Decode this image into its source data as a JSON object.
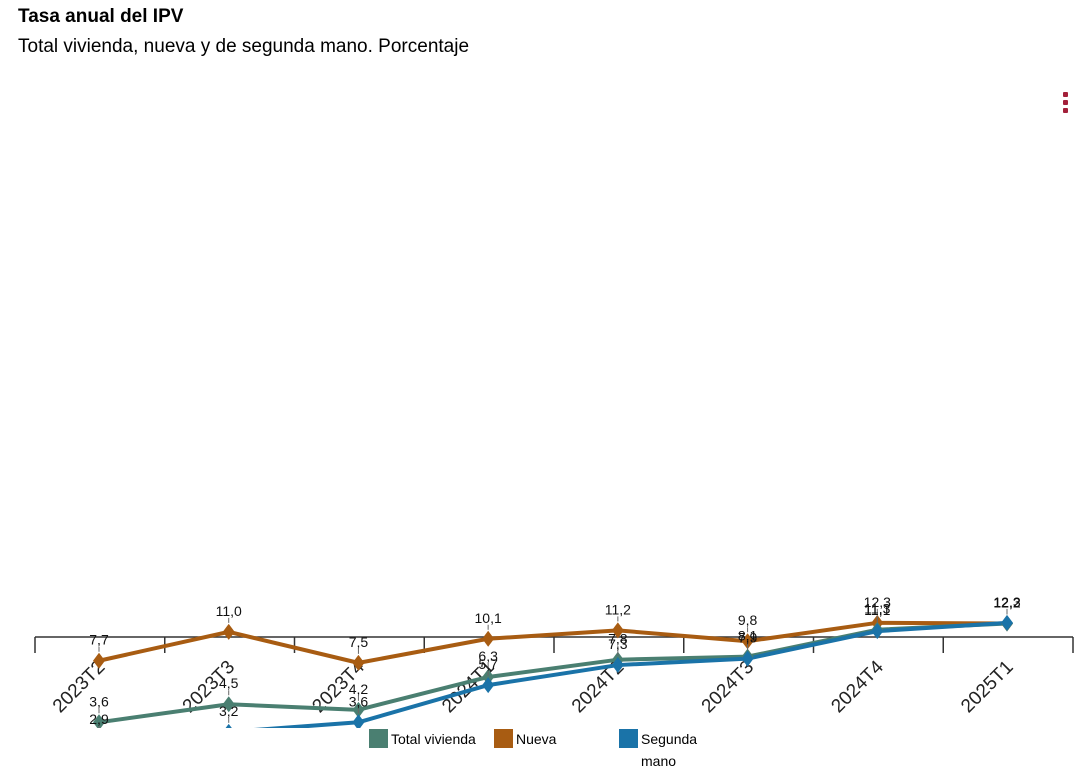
{
  "header": {
    "title": "Tasa anual del IPV",
    "subtitle": "Total vivienda, nueva y de segunda mano. Porcentaje",
    "menu_icon": "vertical-dots-icon"
  },
  "colors": {
    "total": "#4a7f71",
    "nueva": "#a85c12",
    "segunda": "#1a73a8",
    "axis": "#333333"
  },
  "chart_data": {
    "type": "line",
    "title": "Tasa anual del IPV",
    "subtitle": "Total vivienda, nueva y de segunda mano. Porcentaje",
    "categories": [
      "2023T2",
      "2023T3",
      "2023T4",
      "2024T1",
      "2024T2",
      "2024T3",
      "2024T4",
      "2025T1"
    ],
    "series": [
      {
        "key": "total",
        "name": "Total vivienda",
        "values": [
          3.6,
          4.5,
          4.2,
          6.3,
          7.8,
          8.1,
          11.3,
          12.2
        ],
        "labels": [
          "3,6",
          "4,5",
          "4,2",
          "6,3",
          "7,8",
          "8,1",
          "11,3",
          "12,2"
        ]
      },
      {
        "key": "nueva",
        "name": "Nueva",
        "values": [
          7.7,
          11.0,
          7.5,
          10.1,
          11.2,
          9.8,
          12.3,
          12.2
        ],
        "labels": [
          "7,7",
          "11,0",
          "7,5",
          "10,1",
          "11,2",
          "9,8",
          "12,3",
          "12,2"
        ]
      },
      {
        "key": "segunda",
        "name": "Segunda mano",
        "values": [
          2.9,
          3.2,
          3.6,
          5.7,
          7.3,
          7.9,
          11.1,
          12.3
        ],
        "labels": [
          "2,9",
          "3,2",
          "3,6",
          "5,7",
          "7,3",
          "7,9",
          "11,1",
          "12,3"
        ]
      }
    ],
    "marker": "diamond",
    "grid": false,
    "legend_position": "bottom"
  },
  "legend": [
    {
      "key": "total",
      "label": "Total vivienda"
    },
    {
      "key": "nueva",
      "label": "Nueva"
    },
    {
      "key": "segunda",
      "label": "Segunda mano"
    }
  ]
}
